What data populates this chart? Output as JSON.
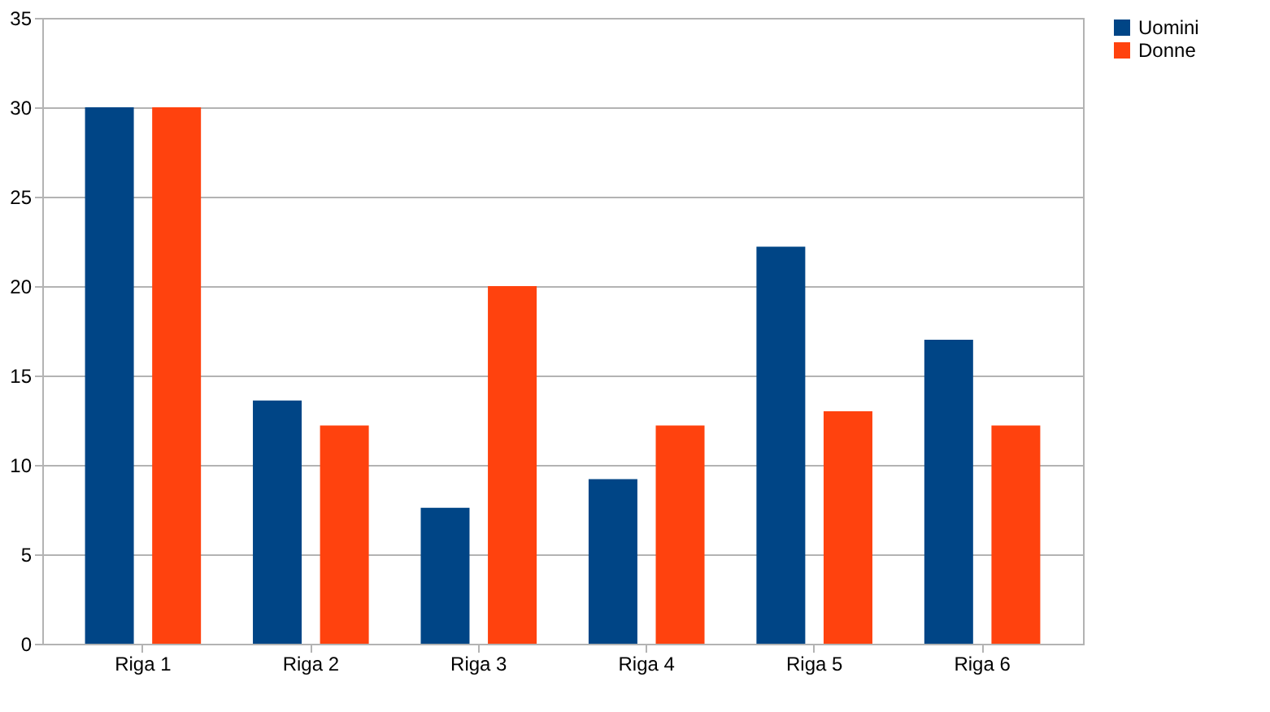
{
  "chart_data": {
    "type": "bar",
    "categories": [
      "Riga 1",
      "Riga 2",
      "Riga 3",
      "Riga 4",
      "Riga 5",
      "Riga 6"
    ],
    "series": [
      {
        "name": "Uomini",
        "color": "#004586",
        "values": [
          30,
          13.6,
          7.6,
          9.2,
          22.2,
          17
        ]
      },
      {
        "name": "Donne",
        "color": "#ff420e",
        "values": [
          30,
          12.2,
          20,
          12.2,
          13,
          12.2
        ]
      }
    ],
    "ylim": [
      0,
      35
    ],
    "yticks": [
      0,
      5,
      10,
      15,
      20,
      25,
      30,
      35
    ],
    "grid": "y",
    "legend": "right"
  }
}
